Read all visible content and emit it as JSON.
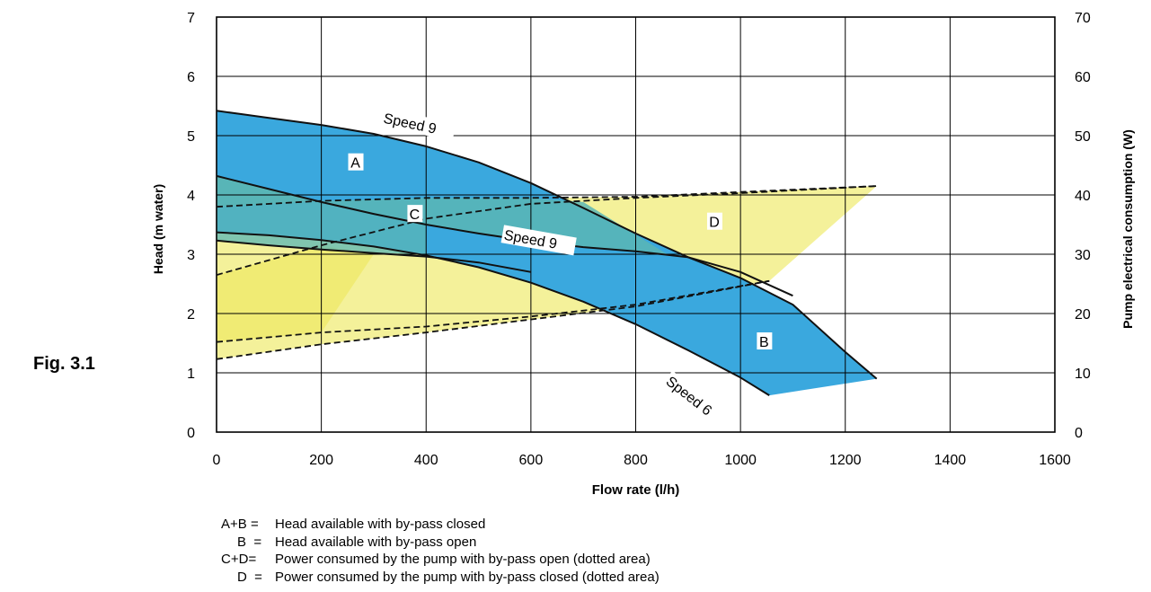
{
  "figure_label": "Fig. 3.1",
  "chart_data": {
    "type": "line",
    "xlabel": "Flow rate (l/h)",
    "ylabel": "Head (m water)",
    "y2label": "Pump electrical consumption (W)",
    "xlim": [
      0,
      1600
    ],
    "ylim": [
      0,
      7
    ],
    "y2lim": [
      0,
      70
    ],
    "x_ticks": [
      "0",
      "200",
      "400",
      "600",
      "800",
      "1000",
      "1200",
      "1400",
      "1600"
    ],
    "y_ticks": [
      "0",
      "1",
      "2",
      "3",
      "4",
      "5",
      "6",
      "7"
    ],
    "y2_ticks": [
      "0",
      "10",
      "20",
      "30",
      "40",
      "50",
      "60",
      "70"
    ],
    "grid": true,
    "colors": {
      "region_a": "#3aa8de",
      "region_b": "#3aa8de",
      "region_c": "#5ab6b5",
      "region_d": "#f4f19a",
      "overlap_yellow": "#ece655",
      "curve": "#111111"
    },
    "head_curves": [
      {
        "name": "Speed 9",
        "by_pass": "closed",
        "x": [
          0,
          100,
          200,
          300,
          400,
          500,
          600,
          700,
          800,
          900,
          1000,
          1100,
          1200,
          1260
        ],
        "y": [
          5.42,
          5.3,
          5.18,
          5.03,
          4.82,
          4.55,
          4.2,
          3.78,
          3.35,
          2.95,
          2.6,
          2.15,
          1.35,
          0.9
        ]
      },
      {
        "name": "Speed 9",
        "by_pass": "open",
        "x": [
          0,
          100,
          200,
          300,
          400,
          500,
          600,
          700,
          800,
          900,
          1000,
          1100
        ],
        "y": [
          4.32,
          4.1,
          3.88,
          3.68,
          3.5,
          3.35,
          3.22,
          3.12,
          3.05,
          2.95,
          2.7,
          2.3
        ]
      },
      {
        "name": "Speed 6",
        "by_pass": "closed",
        "x": [
          0,
          100,
          200,
          300,
          400,
          500,
          600,
          700,
          800,
          900,
          1000,
          1055
        ],
        "y": [
          3.37,
          3.32,
          3.24,
          3.13,
          2.98,
          2.78,
          2.52,
          2.2,
          1.82,
          1.38,
          0.92,
          0.62
        ]
      },
      {
        "name": "Speed 6",
        "by_pass": "open",
        "x": [
          0,
          100,
          200,
          300,
          400,
          500,
          600
        ],
        "y": [
          3.23,
          3.15,
          3.08,
          3.02,
          2.96,
          2.86,
          2.7
        ]
      }
    ],
    "power_curves": [
      {
        "x": [
          0,
          200,
          400,
          600,
          800,
          1000,
          1260
        ],
        "y": [
          38,
          39,
          39.5,
          39.5,
          39.7,
          40.5,
          41.5
        ]
      },
      {
        "x": [
          0,
          200,
          400,
          600,
          800,
          1000,
          1260
        ],
        "y": [
          26.5,
          31.5,
          36,
          38.5,
          39.5,
          40.3,
          41.5
        ]
      },
      {
        "x": [
          0,
          200,
          400,
          600,
          800,
          1055
        ],
        "y": [
          15.2,
          16.8,
          17.8,
          19.5,
          21.5,
          25.5
        ]
      },
      {
        "x": [
          0,
          200,
          400,
          600,
          800,
          1055
        ],
        "y": [
          12.3,
          14.8,
          16.8,
          19,
          21.2,
          25.5
        ]
      }
    ],
    "region_labels": [
      {
        "text": "A",
        "x": 265,
        "y": 4.55
      },
      {
        "text": "B",
        "x": 1045,
        "y": 1.53
      },
      {
        "text": "C",
        "x": 378,
        "y": 3.68
      },
      {
        "text": "D",
        "x": 950,
        "y": 3.55
      }
    ],
    "curve_labels": [
      {
        "text": "Speed 9",
        "x": 318,
        "y": 5.25,
        "angle": 12
      },
      {
        "text": "Speed 9",
        "x": 548,
        "y": 3.28,
        "angle": 10
      },
      {
        "text": "Speed 6",
        "x": 858,
        "y": 0.85,
        "angle": 38
      }
    ]
  },
  "legend": [
    {
      "key": "A+B",
      "text": "Head available with by-pass closed"
    },
    {
      "key": "B",
      "text": "Head available with by-pass open"
    },
    {
      "key": "C+D",
      "text": "Power consumed by the pump with by-pass open (dotted area)"
    },
    {
      "key": "D",
      "text": "Power consumed by the pump with by-pass closed (dotted area)"
    }
  ]
}
